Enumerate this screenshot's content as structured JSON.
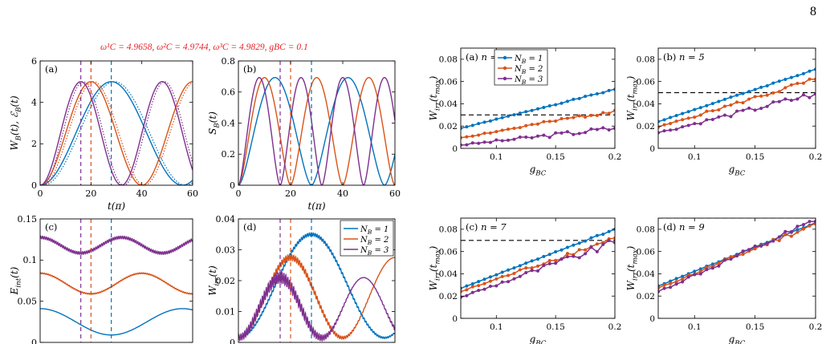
{
  "page_number": "8",
  "figure_title": "ω¹C = 4.9658, ω²C = 4.9744, ω³C = 4.9829, gBC = 0.1",
  "colors": {
    "nb1": "#0072bd",
    "nb2": "#d95319",
    "nb3": "#7e2f8e",
    "title": "#e8222a",
    "dashed": "#000000"
  },
  "chart_data": [
    {
      "id": "a",
      "type": "line",
      "tag": "(a)",
      "ylabel": "W_B(t), ℰ_B(t)",
      "xlabel": "t(π)",
      "xlim": [
        0,
        60
      ],
      "ylim": [
        0,
        6
      ],
      "xticks": [
        0,
        20,
        40,
        60
      ],
      "yticks": [
        0,
        2,
        4,
        6
      ],
      "vlines": [
        {
          "x": 16,
          "series": 3
        },
        {
          "x": 20,
          "series": 2
        },
        {
          "x": 28,
          "series": 1
        }
      ],
      "series": [
        {
          "color_key": "nb1",
          "style": "solid",
          "kind": "cos",
          "amp": 5,
          "period": 56,
          "ripple": 0
        },
        {
          "color_key": "nb1",
          "style": "dotted",
          "kind": "cos",
          "amp": 5,
          "period": 56,
          "ripple": 0,
          "lag": 1.2
        },
        {
          "color_key": "nb2",
          "style": "solid",
          "kind": "cos",
          "amp": 5,
          "period": 40,
          "ripple": 0
        },
        {
          "color_key": "nb2",
          "style": "dotted",
          "kind": "cos",
          "amp": 5,
          "period": 40,
          "ripple": 0,
          "lag": 1.0
        },
        {
          "color_key": "nb3",
          "style": "solid",
          "kind": "cos",
          "amp": 5,
          "period": 32,
          "ripple": 0
        },
        {
          "color_key": "nb3",
          "style": "dotted",
          "kind": "cos",
          "amp": 5,
          "period": 32,
          "ripple": 0,
          "lag": 0.9
        }
      ]
    },
    {
      "id": "b",
      "type": "line",
      "tag": "(b)",
      "ylabel": "S_B(t)",
      "xlabel": "t(π)",
      "xlim": [
        0,
        60
      ],
      "ylim": [
        0,
        0.8
      ],
      "xticks": [
        0,
        20,
        40,
        60
      ],
      "yticks": [
        0,
        0.2,
        0.4,
        0.6,
        0.8
      ],
      "vlines": [
        {
          "x": 16,
          "series": 3
        },
        {
          "x": 20,
          "series": 2
        },
        {
          "x": 28,
          "series": 1
        }
      ],
      "series": [
        {
          "color_key": "nb1",
          "style": "solid",
          "kind": "entropy",
          "peak": 0.693,
          "period": 56
        },
        {
          "color_key": "nb2",
          "style": "solid",
          "kind": "entropy",
          "peak": 0.693,
          "period": 40
        },
        {
          "color_key": "nb3",
          "style": "solid",
          "kind": "entropy",
          "peak": 0.693,
          "period": 32
        }
      ]
    },
    {
      "id": "c",
      "type": "line",
      "tag": "(c)",
      "ylabel": "E_int(t)",
      "xlabel": "",
      "xlim": [
        0,
        60
      ],
      "ylim": [
        0,
        0.15
      ],
      "xticks": [],
      "yticks": [
        0,
        0.05,
        0.1,
        0.15
      ],
      "vlines": [
        {
          "x": 16,
          "series": 3
        },
        {
          "x": 20,
          "series": 2
        },
        {
          "x": 28,
          "series": 1
        }
      ],
      "series": [
        {
          "color_key": "nb1",
          "style": "solid",
          "kind": "offset",
          "base": 0.025,
          "amp": 0.016,
          "period": 56,
          "ripple": 0
        },
        {
          "color_key": "nb2",
          "style": "solid",
          "kind": "offset",
          "base": 0.0715,
          "amp": 0.0125,
          "period": 40,
          "ripple": 0.0006
        },
        {
          "color_key": "nb3",
          "style": "solid",
          "kind": "offset",
          "base": 0.118,
          "amp": 0.0095,
          "period": 32,
          "ripple": 0.0016
        }
      ]
    },
    {
      "id": "d",
      "type": "line",
      "tag": "(d)",
      "ylabel": "W_irr(t)",
      "xlabel": "",
      "xlim": [
        0,
        60
      ],
      "ylim": [
        0,
        0.04
      ],
      "xticks": [],
      "yticks": [
        0,
        0.01,
        0.02,
        0.03,
        0.04
      ],
      "legend": [
        "N_B = 1",
        "N_B = 2",
        "N_B = 3"
      ],
      "legend_position": "top-right",
      "vlines": [
        {
          "x": 16,
          "series": 3
        },
        {
          "x": 20,
          "series": 2
        },
        {
          "x": 28,
          "series": 1
        }
      ],
      "series": [
        {
          "color_key": "nb1",
          "style": "solid",
          "kind": "bump",
          "amp": 0.0335,
          "base": 0.0015,
          "period": 56,
          "ripple": 0.0005
        },
        {
          "color_key": "nb2",
          "style": "solid",
          "kind": "bump",
          "amp": 0.026,
          "base": 0.0015,
          "period": 40,
          "ripple": 0.0009
        },
        {
          "color_key": "nb3",
          "style": "solid",
          "kind": "bump",
          "amp": 0.0195,
          "base": 0.0015,
          "period": 32,
          "ripple": 0.0018
        }
      ]
    },
    {
      "id": "p1",
      "type": "line",
      "tag": "(a) n = 3",
      "ylabel": "W_irr(t_max)",
      "xlabel": "g_BC",
      "xlim": [
        0.07,
        0.2
      ],
      "ylim": [
        0,
        0.09
      ],
      "xticks": [
        0.1,
        0.15,
        0.2
      ],
      "yticks": [
        0,
        0.02,
        0.04,
        0.06,
        0.08
      ],
      "xtick_labels": [
        "0.1",
        "0.15",
        "0.2"
      ],
      "hline": 0.03,
      "legend": [
        "N_B = 1",
        "N_B = 2",
        "N_B = 3"
      ],
      "legend_position": "top-center",
      "series": [
        {
          "color_key": "nb1",
          "start": 0.018,
          "end": 0.053,
          "noise": 0.0004,
          "seed": 1
        },
        {
          "color_key": "nb2",
          "start": 0.0095,
          "end": 0.034,
          "noise": 0.0015,
          "seed": 2
        },
        {
          "color_key": "nb3",
          "start": 0.003,
          "end": 0.018,
          "noise": 0.0022,
          "seed": 3
        }
      ]
    },
    {
      "id": "p2",
      "type": "line",
      "tag": "(b) n = 5",
      "ylabel": "W_irr(t_max)",
      "xlabel": "g_BC",
      "xlim": [
        0.07,
        0.2
      ],
      "ylim": [
        0,
        0.09
      ],
      "xticks": [
        0.1,
        0.15,
        0.2
      ],
      "yticks": [
        0,
        0.02,
        0.04,
        0.06,
        0.08
      ],
      "xtick_labels": [
        "0.1",
        "0.15",
        "0.2"
      ],
      "hline": 0.05,
      "series": [
        {
          "color_key": "nb1",
          "start": 0.024,
          "end": 0.071,
          "noise": 0.0004,
          "seed": 4
        },
        {
          "color_key": "nb2",
          "start": 0.019,
          "end": 0.062,
          "noise": 0.0018,
          "seed": 5
        },
        {
          "color_key": "nb3",
          "start": 0.014,
          "end": 0.049,
          "noise": 0.0025,
          "seed": 6
        }
      ]
    },
    {
      "id": "p3",
      "type": "line",
      "tag": "(c) n = 7",
      "ylabel": "W_irr(t_max)",
      "xlabel": "g_BC",
      "xlim": [
        0.07,
        0.2
      ],
      "ylim": [
        0,
        0.09
      ],
      "xticks": [
        0.1,
        0.15,
        0.2
      ],
      "yticks": [
        0,
        0.02,
        0.04,
        0.06,
        0.08
      ],
      "xtick_labels": [
        "0.1",
        "0.15",
        "0.2"
      ],
      "hline": 0.07,
      "series": [
        {
          "color_key": "nb1",
          "start": 0.027,
          "end": 0.08,
          "noise": 0.0004,
          "seed": 7
        },
        {
          "color_key": "nb2",
          "start": 0.024,
          "end": 0.072,
          "noise": 0.0022,
          "seed": 8
        },
        {
          "color_key": "nb3",
          "start": 0.019,
          "end": 0.068,
          "noise": 0.003,
          "seed": 9
        }
      ]
    },
    {
      "id": "p4",
      "type": "line",
      "tag": "(d) n = 9",
      "ylabel": "W_irr(t_max)",
      "xlabel": "g_BC",
      "xlim": [
        0.07,
        0.2
      ],
      "ylim": [
        0,
        0.09
      ],
      "xticks": [
        0.1,
        0.15,
        0.2
      ],
      "yticks": [
        0,
        0.02,
        0.04,
        0.06,
        0.08
      ],
      "xtick_labels": [
        "0.1",
        "0.15",
        "0.2"
      ],
      "hline": 0.09,
      "series": [
        {
          "color_key": "nb1",
          "start": 0.029,
          "end": 0.086,
          "noise": 0.0004,
          "seed": 10
        },
        {
          "color_key": "nb2",
          "start": 0.027,
          "end": 0.085,
          "noise": 0.0022,
          "seed": 11
        },
        {
          "color_key": "nb3",
          "start": 0.024,
          "end": 0.087,
          "noise": 0.003,
          "seed": 12
        }
      ]
    }
  ]
}
